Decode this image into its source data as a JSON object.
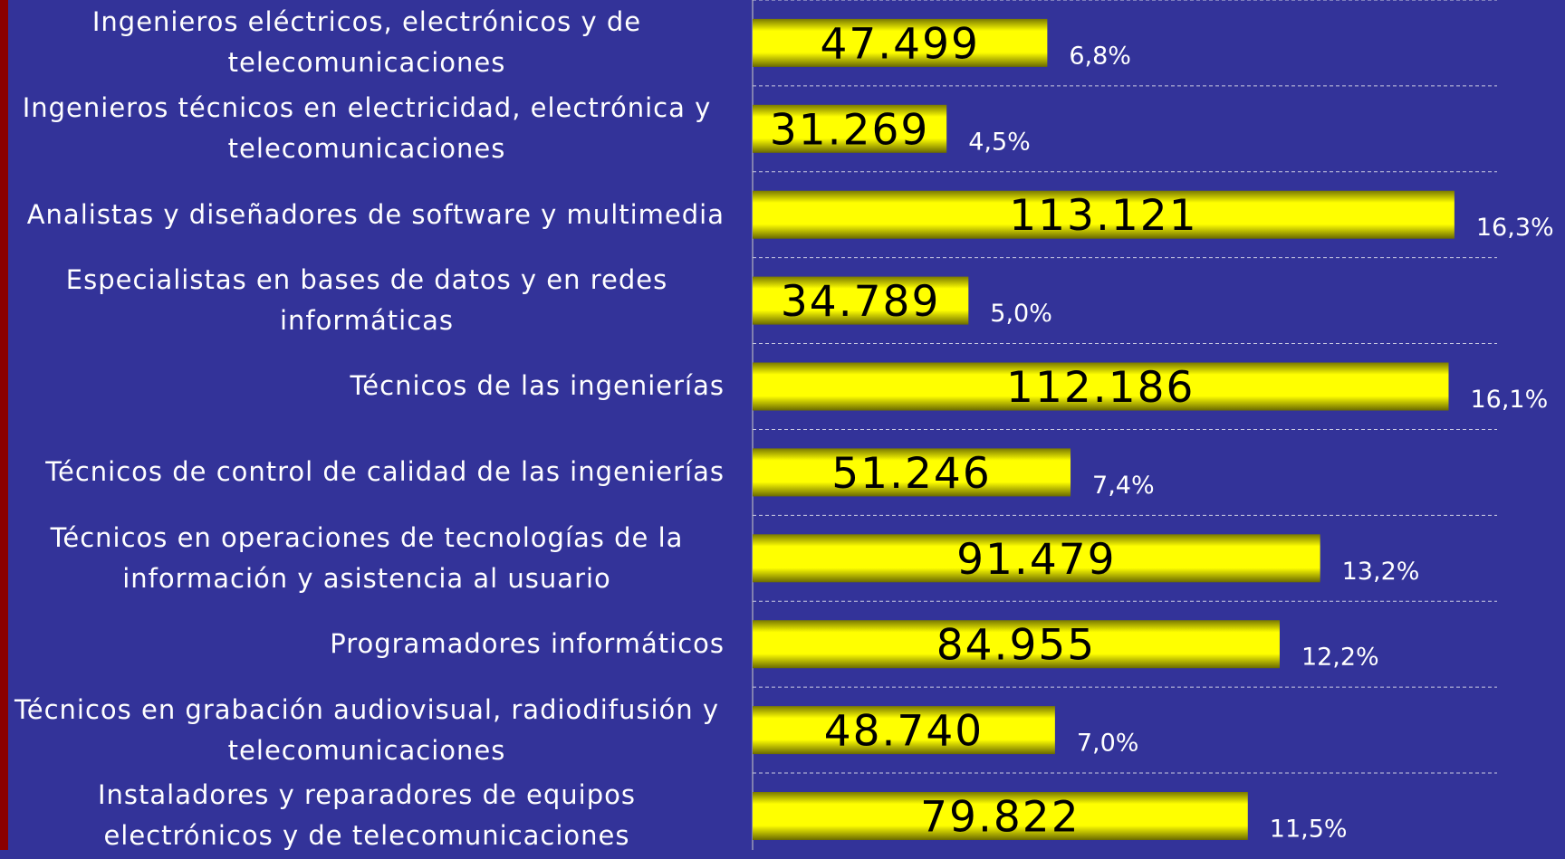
{
  "chart_data": {
    "type": "bar",
    "orientation": "horizontal",
    "categories": [
      "Ingenieros eléctricos, electrónicos y de telecomunicaciones",
      "Ingenieros técnicos en electricidad, electrónica y telecomunicaciones",
      "Analistas y diseñadores de software y multimedia",
      "Especialistas en bases de datos y en redes informáticas",
      "Técnicos de las ingenierías",
      "Técnicos de control de calidad de las ingenierías",
      "Técnicos en operaciones de tecnologías de la información y asistencia al usuario",
      "Programadores informáticos",
      "Técnicos en grabación audiovisual, radiodifusión y telecomunicaciones",
      "Instaladores y reparadores de equipos electrónicos y de telecomunicaciones"
    ],
    "values": [
      47499,
      31269,
      113121,
      34789,
      112186,
      51246,
      91479,
      84955,
      48740,
      79822
    ],
    "value_labels": [
      "47.499",
      "31.269",
      "113.121",
      "34.789",
      "112.186",
      "51.246",
      "91.479",
      "84.955",
      "48.740",
      "79.822"
    ],
    "share_labels": [
      "6,8%",
      "4,5%",
      "16,3%",
      "5,0%",
      "16,1%",
      "7,4%",
      "13,2%",
      "12,2%",
      "7,0%",
      "11,5%"
    ],
    "color": "#ffff00",
    "xlim": [
      0,
      120000
    ],
    "grid": true
  }
}
